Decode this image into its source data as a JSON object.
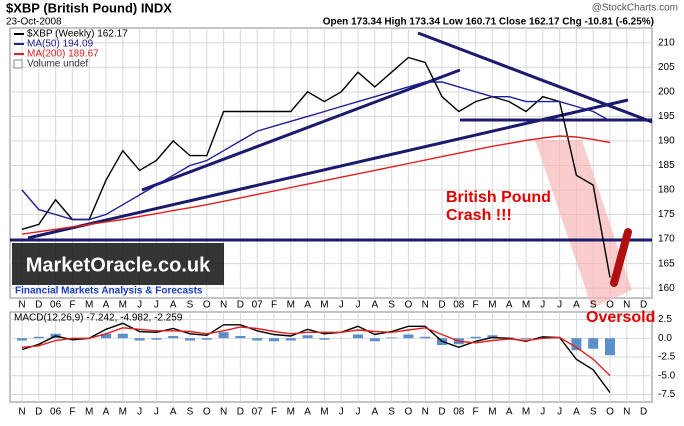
{
  "chart_data": [
    {
      "type": "line",
      "title": "$XBP (British Pound) INDX",
      "source": "@StockCharts.com",
      "date": "23-Oct-2008",
      "quote": "Open 173.34 High 173.34 Low 160.71 Close 162.17 Chg -10.81 (-6.25%)",
      "annotations": [
        "British Pound",
        "Crash !!!",
        "Oversold"
      ],
      "logo": "MarketOracle.co.uk",
      "logo_subtitle": "Financial Markets Analysis & Forecasts",
      "categories": [
        "N",
        "D",
        "06",
        "F",
        "M",
        "A",
        "M",
        "J",
        "J",
        "A",
        "S",
        "O",
        "N",
        "D",
        "07",
        "F",
        "M",
        "A",
        "M",
        "J",
        "J",
        "A",
        "S",
        "O",
        "N",
        "D",
        "08",
        "F",
        "M",
        "A",
        "M",
        "J",
        "J",
        "A",
        "S",
        "O",
        "N",
        "D"
      ],
      "series": [
        {
          "name": "$XBP (Weekly) 162.17",
          "color": "#000000",
          "values": [
            172,
            173,
            178,
            174,
            174,
            182,
            188,
            184,
            186,
            190,
            187,
            187,
            196,
            196,
            196,
            196,
            196,
            200,
            198,
            200,
            204,
            201,
            204,
            207,
            206,
            199,
            196,
            198,
            199,
            198,
            196,
            199,
            198,
            183,
            181,
            162.17,
            null,
            null
          ]
        },
        {
          "name": "MA(50) 194.09",
          "color": "#1f1f9a",
          "values": [
            180,
            176,
            175,
            174,
            174,
            175,
            177,
            179,
            181,
            183,
            185,
            186,
            188,
            190,
            192,
            193,
            194,
            195,
            196,
            197,
            198,
            199,
            200,
            201,
            202,
            202,
            201,
            200,
            199,
            199,
            198,
            198,
            198,
            197,
            196,
            194.09,
            null,
            null
          ]
        },
        {
          "name": "MA(200) 189.67",
          "color": "#e02020",
          "values": [
            171,
            171.5,
            172,
            172.5,
            173,
            173.5,
            174,
            174.6,
            175.2,
            175.8,
            176.4,
            177,
            177.7,
            178.4,
            179.1,
            179.8,
            180.5,
            181.2,
            181.9,
            182.6,
            183.3,
            184,
            184.7,
            185.4,
            186.1,
            186.8,
            187.5,
            188.2,
            188.9,
            189.5,
            190.1,
            190.6,
            191,
            190.8,
            190.3,
            189.67,
            null,
            null
          ]
        }
      ],
      "volume_label": "Volume undef",
      "ylim": [
        158,
        213
      ],
      "yticks": [
        160,
        165,
        170,
        175,
        180,
        185,
        190,
        195,
        200,
        205,
        210
      ]
    },
    {
      "type": "macd",
      "title": "MACD(12,26,9) -7.242, -4.982, -2.259",
      "categories": [
        "N",
        "D",
        "06",
        "F",
        "M",
        "A",
        "M",
        "J",
        "J",
        "A",
        "S",
        "O",
        "N",
        "D",
        "07",
        "F",
        "M",
        "A",
        "M",
        "J",
        "J",
        "A",
        "S",
        "O",
        "N",
        "D",
        "08",
        "F",
        "M",
        "A",
        "M",
        "J",
        "J",
        "A",
        "S",
        "O",
        "N",
        "D"
      ],
      "series": [
        {
          "name": "MACD",
          "color": "#000000",
          "values": [
            -1.5,
            -0.8,
            0.3,
            -0.2,
            0,
            1.2,
            2.0,
            0.9,
            0.8,
            1.3,
            0.6,
            0.4,
            1.8,
            1.8,
            1.0,
            0.5,
            0.3,
            1.2,
            0.6,
            0.8,
            1.6,
            0.5,
            0.9,
            1.6,
            1.6,
            -0.4,
            -1.2,
            -0.4,
            0.1,
            0,
            -0.4,
            0.2,
            0.1,
            -2.8,
            -4.2,
            -7.242,
            null,
            null
          ]
        },
        {
          "name": "Signal",
          "color": "#e02020",
          "values": [
            -1.2,
            -1.0,
            -0.3,
            0,
            0,
            0.6,
            1.4,
            1.2,
            1.0,
            1.0,
            0.9,
            0.6,
            1.0,
            1.5,
            1.3,
            0.9,
            0.6,
            0.8,
            0.8,
            0.8,
            1.1,
            0.9,
            0.8,
            1.1,
            1.4,
            0.5,
            -0.4,
            -0.6,
            -0.3,
            -0.1,
            -0.3,
            0,
            0.1,
            -1.2,
            -2.8,
            -4.982,
            null,
            null
          ]
        }
      ],
      "histogram": {
        "color": "#5b8fc9",
        "values": [
          -0.3,
          0.2,
          0.6,
          -0.2,
          0,
          0.6,
          0.6,
          -0.3,
          -0.2,
          0.3,
          -0.3,
          -0.2,
          0.8,
          0.3,
          -0.3,
          -0.4,
          -0.3,
          0.4,
          -0.2,
          0,
          0.5,
          -0.4,
          0.1,
          0.5,
          0.2,
          -0.9,
          -0.8,
          0.2,
          0.4,
          0.1,
          -0.1,
          0.2,
          0,
          -1.6,
          -1.4,
          -2.259,
          null,
          null
        ]
      },
      "ylim": [
        -8.5,
        3.5
      ],
      "yticks": [
        2.5,
        {
          "value": 0,
          "label": "0.0"
        },
        -2.5,
        {
          "value": -5,
          "label": "-5.0"
        },
        -7.5
      ]
    }
  ]
}
